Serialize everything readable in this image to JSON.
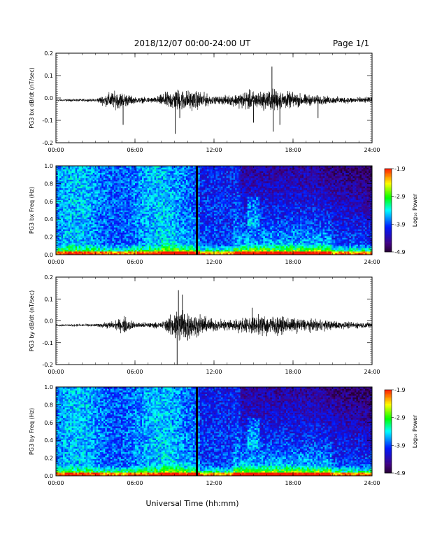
{
  "header": {
    "title": "2018/12/07  00:00-24:00 UT",
    "page": "Page 1/1"
  },
  "xlabel": "Universal Time (hh:mm)",
  "time_ticks": [
    "00:00",
    "06:00",
    "12:00",
    "18:00",
    "24:00"
  ],
  "colorbar": {
    "label": "Log₁₀ Power",
    "ticks": [
      "-1.9",
      "-2.9",
      "-3.9",
      "-4.9"
    ]
  },
  "chart_data": [
    {
      "type": "line",
      "ylabel": "PG3 bx dB/dt (nT/sec)",
      "xlim": [
        0,
        24
      ],
      "ylim": [
        -0.2,
        0.2
      ],
      "yticks": [
        "0.2",
        "0.1",
        "0.0",
        "-0.1",
        "-0.2"
      ],
      "baseline": -0.01,
      "activity": [
        {
          "t": 0.0,
          "a": 0.004
        },
        {
          "t": 3.0,
          "a": 0.005
        },
        {
          "t": 3.7,
          "a": 0.02
        },
        {
          "t": 4.2,
          "a": 0.03
        },
        {
          "t": 5.0,
          "a": 0.03
        },
        {
          "t": 6.0,
          "a": 0.01
        },
        {
          "t": 7.5,
          "a": 0.01
        },
        {
          "t": 8.5,
          "a": 0.03
        },
        {
          "t": 9.2,
          "a": 0.04
        },
        {
          "t": 10.0,
          "a": 0.035
        },
        {
          "t": 11.0,
          "a": 0.03
        },
        {
          "t": 12.0,
          "a": 0.012
        },
        {
          "t": 13.5,
          "a": 0.02
        },
        {
          "t": 14.5,
          "a": 0.035
        },
        {
          "t": 15.5,
          "a": 0.03
        },
        {
          "t": 16.5,
          "a": 0.04
        },
        {
          "t": 17.5,
          "a": 0.03
        },
        {
          "t": 19.0,
          "a": 0.02
        },
        {
          "t": 21.0,
          "a": 0.012
        },
        {
          "t": 24.0,
          "a": 0.01
        }
      ],
      "spikes": [
        {
          "t": 5.1,
          "y": -0.12
        },
        {
          "t": 9.05,
          "y": -0.16
        },
        {
          "t": 9.4,
          "y": -0.09
        },
        {
          "t": 15.0,
          "y": -0.11
        },
        {
          "t": 16.4,
          "y": 0.14
        },
        {
          "t": 16.5,
          "y": -0.15
        },
        {
          "t": 17.0,
          "y": -0.12
        },
        {
          "t": 19.9,
          "y": -0.09
        }
      ]
    },
    {
      "type": "heatmap",
      "ylabel": "PG3 bx Freq (Hz)",
      "xlim": [
        0,
        24
      ],
      "ylim": [
        0,
        1.0
      ],
      "yticks": [
        "1.0",
        "0.8",
        "0.6",
        "0.4",
        "0.2",
        "0.0"
      ],
      "clim": [
        -4.9,
        -1.9
      ],
      "gap_time": 10.7
    },
    {
      "type": "line",
      "ylabel": "PG3 by dB/dt (nT/sec)",
      "xlim": [
        0,
        24
      ],
      "ylim": [
        -0.2,
        0.2
      ],
      "yticks": [
        "0.2",
        "0.1",
        "0.0",
        "-0.1",
        "-0.2"
      ],
      "baseline": -0.02,
      "activity": [
        {
          "t": 0.0,
          "a": 0.004
        },
        {
          "t": 3.0,
          "a": 0.005
        },
        {
          "t": 4.5,
          "a": 0.015
        },
        {
          "t": 5.2,
          "a": 0.03
        },
        {
          "t": 6.0,
          "a": 0.01
        },
        {
          "t": 8.0,
          "a": 0.01
        },
        {
          "t": 8.8,
          "a": 0.04
        },
        {
          "t": 9.3,
          "a": 0.07
        },
        {
          "t": 10.0,
          "a": 0.05
        },
        {
          "t": 11.0,
          "a": 0.035
        },
        {
          "t": 12.0,
          "a": 0.02
        },
        {
          "t": 14.0,
          "a": 0.025
        },
        {
          "t": 15.5,
          "a": 0.035
        },
        {
          "t": 16.5,
          "a": 0.035
        },
        {
          "t": 18.0,
          "a": 0.025
        },
        {
          "t": 20.0,
          "a": 0.02
        },
        {
          "t": 22.0,
          "a": 0.012
        },
        {
          "t": 24.0,
          "a": 0.01
        }
      ],
      "spikes": [
        {
          "t": 9.2,
          "y": -0.21
        },
        {
          "t": 9.3,
          "y": 0.14
        },
        {
          "t": 9.6,
          "y": 0.12
        },
        {
          "t": 10.0,
          "y": -0.09
        },
        {
          "t": 14.9,
          "y": 0.06
        },
        {
          "t": 16.0,
          "y": -0.07
        }
      ]
    },
    {
      "type": "heatmap",
      "ylabel": "PG3 by Freq (Hz)",
      "xlim": [
        0,
        24
      ],
      "ylim": [
        0,
        1.0
      ],
      "yticks": [
        "1.0",
        "0.8",
        "0.6",
        "0.4",
        "0.2",
        "0.0"
      ],
      "clim": [
        -4.9,
        -1.9
      ],
      "gap_time": 10.7
    }
  ]
}
